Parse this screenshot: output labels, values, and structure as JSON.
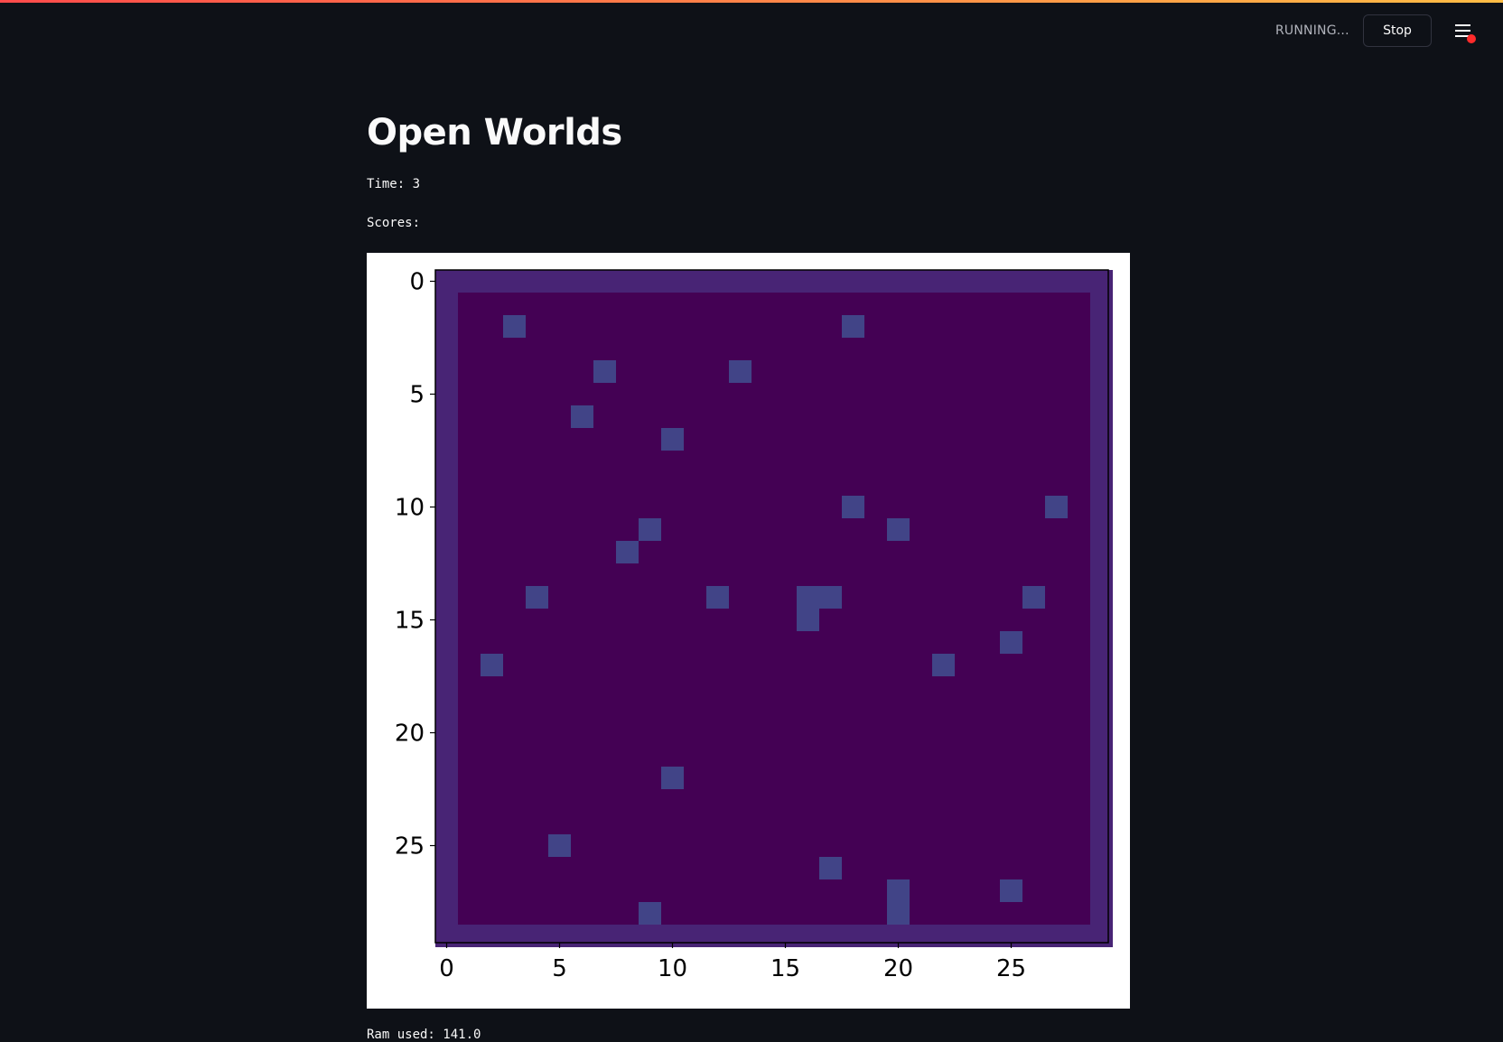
{
  "header": {
    "status": "RUNNING...",
    "stop_label": "Stop",
    "menu_icon": "hamburger-menu-icon",
    "accent_colors": [
      "#ff4b4b",
      "#ffbd45"
    ]
  },
  "main": {
    "title": "Open Worlds",
    "time_line": "Time: 3",
    "scores_line": "Scores:",
    "ram_line": "Ram used: 141.0"
  },
  "chart_data": {
    "type": "heatmap",
    "rows": 30,
    "cols": 30,
    "x_ticks": [
      0,
      5,
      10,
      15,
      20,
      25
    ],
    "y_ticks": [
      0,
      5,
      10,
      15,
      20,
      25
    ],
    "colors": {
      "background": "#440154",
      "border": "#482475",
      "cell": "#414487"
    },
    "border_value": 1,
    "cells": [
      [
        2,
        3
      ],
      [
        2,
        18
      ],
      [
        4,
        7
      ],
      [
        4,
        13
      ],
      [
        6,
        6
      ],
      [
        7,
        10
      ],
      [
        10,
        18
      ],
      [
        10,
        27
      ],
      [
        11,
        9
      ],
      [
        11,
        20
      ],
      [
        12,
        8
      ],
      [
        14,
        4
      ],
      [
        14,
        12
      ],
      [
        14,
        16
      ],
      [
        14,
        17
      ],
      [
        14,
        26
      ],
      [
        15,
        16
      ],
      [
        16,
        25
      ],
      [
        17,
        2
      ],
      [
        17,
        22
      ],
      [
        22,
        10
      ],
      [
        25,
        5
      ],
      [
        26,
        17
      ],
      [
        27,
        20
      ],
      [
        27,
        25
      ],
      [
        28,
        9
      ],
      [
        28,
        20
      ]
    ]
  }
}
